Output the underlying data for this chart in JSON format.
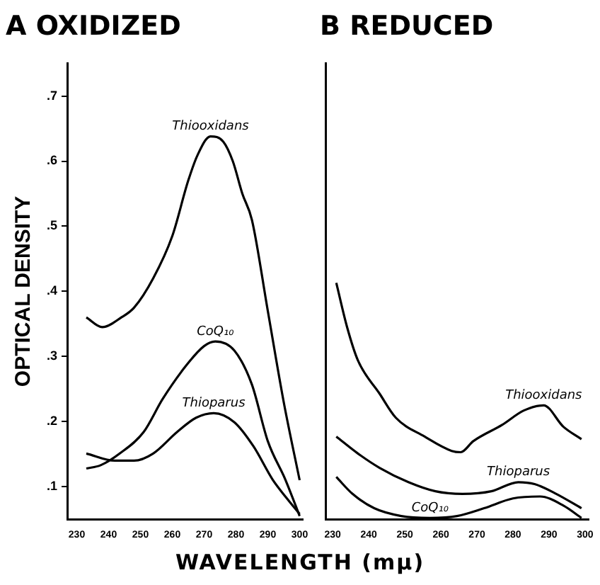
{
  "chart_data": [
    {
      "type": "line",
      "title": "A OXIDIZED",
      "ylabel": "OPTICAL DENSITY",
      "xlabel": "WAVELENGTH (mμ)",
      "xlim": [
        227,
        301
      ],
      "ylim": [
        0.05,
        0.75
      ],
      "xticks": [
        230,
        240,
        250,
        260,
        270,
        280,
        290,
        300
      ],
      "yticks": [
        {
          "value": 0.1,
          "label": ".1"
        },
        {
          "value": 0.2,
          "label": ".2"
        },
        {
          "value": 0.3,
          "label": ".3"
        },
        {
          "value": 0.4,
          "label": ".4"
        },
        {
          "value": 0.5,
          "label": ".5"
        },
        {
          "value": 0.6,
          "label": ".6"
        },
        {
          "value": 0.7,
          "label": ".7"
        }
      ],
      "grid": false,
      "legend": false,
      "marker": "none",
      "line_style": "solid",
      "series": [
        {
          "name": "Thiooxidans",
          "color": "#000000",
          "x": [
            233,
            238,
            244,
            248,
            254,
            260,
            265,
            268,
            272,
            276,
            279,
            282,
            285,
            290,
            295,
            300
          ],
          "values": [
            0.36,
            0.345,
            0.36,
            0.375,
            0.42,
            0.485,
            0.57,
            0.61,
            0.638,
            0.63,
            0.6,
            0.55,
            0.51,
            0.37,
            0.23,
            0.11
          ]
        },
        {
          "name": "CoQ₁₀",
          "color": "#000000",
          "x": [
            233,
            237.5,
            243.5,
            251,
            257,
            264.5,
            270,
            273.5,
            279.5,
            285,
            290,
            295.5,
            300
          ],
          "values": [
            0.128,
            0.133,
            0.151,
            0.184,
            0.235,
            0.287,
            0.316,
            0.323,
            0.309,
            0.257,
            0.17,
            0.111,
            0.055
          ]
        },
        {
          "name": "Thioparus",
          "color": "#000000",
          "x": [
            233,
            242,
            248,
            254,
            261.5,
            267.5,
            273,
            279.5,
            285.5,
            291.5,
            296,
            300
          ],
          "values": [
            0.151,
            0.14,
            0.14,
            0.151,
            0.184,
            0.206,
            0.213,
            0.199,
            0.162,
            0.111,
            0.082,
            0.058
          ]
        }
      ]
    },
    {
      "type": "line",
      "title": "B REDUCED",
      "xlim": [
        228,
        301
      ],
      "ylim": [
        0.05,
        0.75
      ],
      "tick_labels": "x",
      "xticks": [
        230,
        240,
        250,
        260,
        270,
        280,
        290,
        300
      ],
      "grid": false,
      "legend": false,
      "marker": "none",
      "line_style": "solid",
      "series": [
        {
          "name": "Thiooxidans",
          "color": "#000000",
          "x": [
            231,
            234,
            237,
            243,
            247.5,
            255.5,
            263,
            265.5,
            269,
            277,
            283,
            288.5,
            294,
            299
          ],
          "values": [
            0.413,
            0.345,
            0.294,
            0.243,
            0.206,
            0.177,
            0.155,
            0.153,
            0.17,
            0.195,
            0.217,
            0.225,
            0.192,
            0.173
          ]
        },
        {
          "name": "Thioparus",
          "color": "#000000",
          "x": [
            231,
            237,
            243,
            251,
            258.5,
            266,
            274,
            281.5,
            286,
            292,
            299
          ],
          "values": [
            0.177,
            0.151,
            0.129,
            0.107,
            0.093,
            0.089,
            0.093,
            0.107,
            0.104,
            0.089,
            0.067
          ]
        },
        {
          "name": "CoQ₁₀",
          "color": "#000000",
          "x": [
            231,
            235.5,
            241.5,
            249,
            257,
            264.5,
            272,
            280,
            287.5,
            294,
            299
          ],
          "values": [
            0.115,
            0.089,
            0.067,
            0.055,
            0.052,
            0.055,
            0.067,
            0.082,
            0.085,
            0.071,
            0.052
          ]
        }
      ]
    }
  ]
}
